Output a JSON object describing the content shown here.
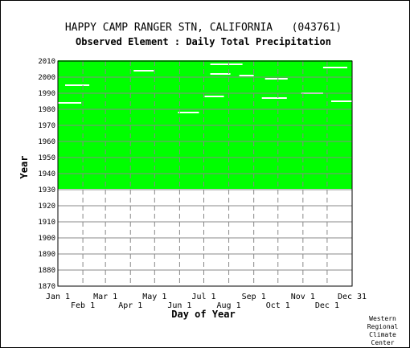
{
  "chart_data": {
    "type": "heatmap",
    "title": "HAPPY CAMP RANGER STN, CALIFORNIA   (043761)",
    "subtitle": "Observed Element : Daily Total Precipitation",
    "xlabel": "Day of Year",
    "ylabel": "Year",
    "x_ticks_upper": [
      "Jan 1",
      "Mar 1",
      "May 1",
      "Jul 1",
      "Sep 1",
      "Nov 1",
      "Dec 31"
    ],
    "x_ticks_lower": [
      "Feb 1",
      "Apr 1",
      "Jun 1",
      "Aug 1",
      "Oct 1",
      "Dec 1"
    ],
    "x_tick_days": {
      "Jan 1": 1,
      "Feb 1": 32,
      "Mar 1": 60,
      "Apr 1": 91,
      "May 1": 121,
      "Jun 1": 152,
      "Jul 1": 182,
      "Aug 1": 213,
      "Sep 1": 244,
      "Oct 1": 274,
      "Nov 1": 305,
      "Dec 1": 335,
      "Dec 31": 366
    },
    "xlim": [
      1,
      366
    ],
    "y_ticks": [
      1870,
      1880,
      1890,
      1900,
      1910,
      1920,
      1930,
      1940,
      1950,
      1960,
      1970,
      1980,
      1990,
      2000,
      2010
    ],
    "ylim": [
      1870,
      2010
    ],
    "data_period": [
      1931,
      2010
    ],
    "data_color": "#00ff00",
    "missing_color": "#ffffff",
    "grid": true,
    "missing_segments": [
      {
        "year": 1978,
        "start_day": 150,
        "end_day": 176
      },
      {
        "year": 1987,
        "start_day": 254,
        "end_day": 285
      },
      {
        "year": 1988,
        "start_day": 183,
        "end_day": 207
      },
      {
        "year": 1990,
        "start_day": 303,
        "end_day": 330
      },
      {
        "year": 2002,
        "start_day": 190,
        "end_day": 215
      },
      {
        "year": 2001,
        "start_day": 226,
        "end_day": 244
      },
      {
        "year": 1999,
        "start_day": 258,
        "end_day": 286
      },
      {
        "year": 2008,
        "start_day": 190,
        "end_day": 230
      },
      {
        "year": 1984,
        "start_day": 1,
        "end_day": 30
      },
      {
        "year": 1995,
        "start_day": 10,
        "end_day": 40
      },
      {
        "year": 2004,
        "start_day": 95,
        "end_day": 120
      },
      {
        "year": 2006,
        "start_day": 330,
        "end_day": 360
      },
      {
        "year": 1985,
        "start_day": 340,
        "end_day": 366
      }
    ]
  },
  "credit": {
    "line1": "Western",
    "line2": "Regional",
    "line3": "Climate",
    "line4": "Center"
  }
}
